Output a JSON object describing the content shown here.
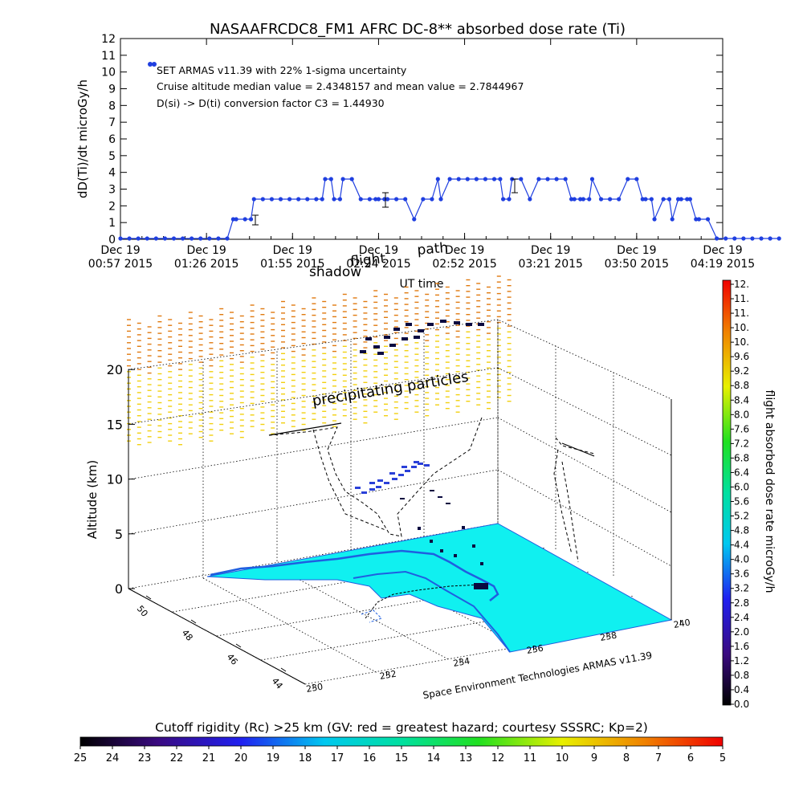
{
  "chart_data": [
    {
      "type": "line",
      "title": "NASAAFRCDC8_FM1 AFRC DC-8** absorbed dose rate (Ti)",
      "ylabel": "dD(Ti)/dt microGy/h",
      "xlabel": "UT time",
      "ylim": [
        0,
        12
      ],
      "y_ticks": [
        "0",
        "1",
        "2",
        "3",
        "4",
        "5",
        "6",
        "7",
        "8",
        "9",
        "10",
        "11",
        "12"
      ],
      "x_ticks": [
        {
          "line1": "Dec 19",
          "line2": "00:57 2015"
        },
        {
          "line1": "Dec 19",
          "line2": "01:26 2015"
        },
        {
          "line1": "Dec 19",
          "line2": "01:55 2015"
        },
        {
          "line1": "Dec 19",
          "line2": "02:24 2015"
        },
        {
          "line1": "Dec 19",
          "line2": "02:52 2015"
        },
        {
          "line1": "Dec 19",
          "line2": "03:21 2015"
        },
        {
          "line1": "Dec 19",
          "line2": "03:50 2015"
        },
        {
          "line1": "Dec 19",
          "line2": "04:19 2015"
        }
      ],
      "annotations": [
        "SET ARMAS v11.39 with 22% 1-sigma uncertainty",
        "Cruise altitude median value = 2.4348157 and mean value = 2.7844967",
        "D(si) -> D(ti) conversion factor C3 = 1.44930"
      ],
      "overlay_text": [
        "shadow",
        "flight",
        "path"
      ],
      "series": [
        {
          "color": "#1f3fe0",
          "x_minutes": [
            0,
            3,
            6,
            9,
            12,
            15,
            18,
            21,
            24,
            27,
            30,
            33,
            36,
            38,
            39,
            42,
            44,
            45,
            48,
            51,
            54,
            57,
            60,
            63,
            66,
            68,
            69,
            71,
            72,
            74,
            75,
            78,
            81,
            84,
            86,
            87,
            89,
            90,
            93,
            96,
            99,
            102,
            105,
            107,
            108,
            111,
            114,
            117,
            120,
            123,
            126,
            128,
            129,
            131,
            132,
            135,
            138,
            141,
            144,
            147,
            150,
            152,
            153,
            155,
            156,
            158,
            159,
            162,
            165,
            168,
            171,
            174,
            176,
            177,
            179,
            180,
            183,
            185,
            186,
            188,
            189,
            191,
            192,
            194,
            195,
            198,
            201,
            204,
            207,
            210,
            213,
            216,
            219,
            222
          ],
          "values": [
            0,
            0,
            0,
            0,
            0,
            0,
            0,
            0,
            0,
            0,
            0,
            0,
            0,
            1.2,
            1.2,
            1.2,
            1.2,
            2.4,
            2.4,
            2.4,
            2.4,
            2.4,
            2.4,
            2.4,
            2.4,
            2.4,
            3.6,
            3.6,
            2.4,
            2.4,
            3.6,
            3.6,
            2.4,
            2.4,
            2.4,
            2.4,
            2.4,
            2.4,
            2.4,
            2.4,
            1.2,
            2.4,
            2.4,
            3.6,
            2.4,
            3.6,
            3.6,
            3.6,
            3.6,
            3.6,
            3.6,
            3.6,
            2.4,
            2.4,
            3.6,
            3.6,
            2.4,
            3.6,
            3.6,
            3.6,
            3.6,
            2.4,
            2.4,
            2.4,
            2.4,
            2.4,
            3.6,
            2.4,
            2.4,
            2.4,
            3.6,
            3.6,
            2.4,
            2.4,
            2.4,
            1.2,
            2.4,
            2.4,
            1.2,
            2.4,
            2.4,
            2.4,
            2.4,
            1.2,
            1.2,
            1.2,
            0,
            0,
            0,
            0,
            0,
            0,
            0,
            0
          ]
        }
      ]
    },
    {
      "type": "scatter",
      "ylabel": "Altitude (km)",
      "z_ticks": [
        "0",
        "5",
        "10",
        "15",
        "20"
      ],
      "lat_ticks": [
        "50",
        "48",
        "46",
        "44"
      ],
      "lon_ticks": [
        "230",
        "232",
        "234",
        "236",
        "238",
        "240"
      ],
      "axis_caption": "Space Environment Technologies ARMAS v11.39",
      "annotation": "precipitating particles",
      "right_colorbar": {
        "label": "flight absorbed dose rate microGy/h",
        "ticks": [
          "12.",
          "11.",
          "11.",
          "10.",
          "10.",
          "9.6",
          "9.2",
          "8.8",
          "8.4",
          "8.0",
          "7.6",
          "7.2",
          "6.8",
          "6.4",
          "6.0",
          "5.6",
          "5.2",
          "4.8",
          "4.4",
          "4.0",
          "3.6",
          "3.2",
          "2.8",
          "2.4",
          "2.0",
          "1.6",
          "1.2",
          "0.8",
          "0.4",
          "0.0"
        ]
      },
      "bottom_colorbar": {
        "label": "Cutoff rigidity (Rc) >25 km (GV: red = greatest hazard; courtesy SSSRC; Kp=2)",
        "ticks": [
          "25",
          "24",
          "23",
          "22",
          "21",
          "20",
          "19",
          "18",
          "17",
          "16",
          "15",
          "14",
          "13",
          "12",
          "11",
          "10",
          "9",
          "8",
          "7",
          "6",
          "5"
        ]
      },
      "colors": {
        "surface": "#10f0f0",
        "coast": "#1f5fe0",
        "low_dose": "#0a0a40",
        "mid_dose": "#2a40d8",
        "curtain_upper": "#e07a10",
        "curtain_lower": "#f2d010"
      }
    }
  ]
}
